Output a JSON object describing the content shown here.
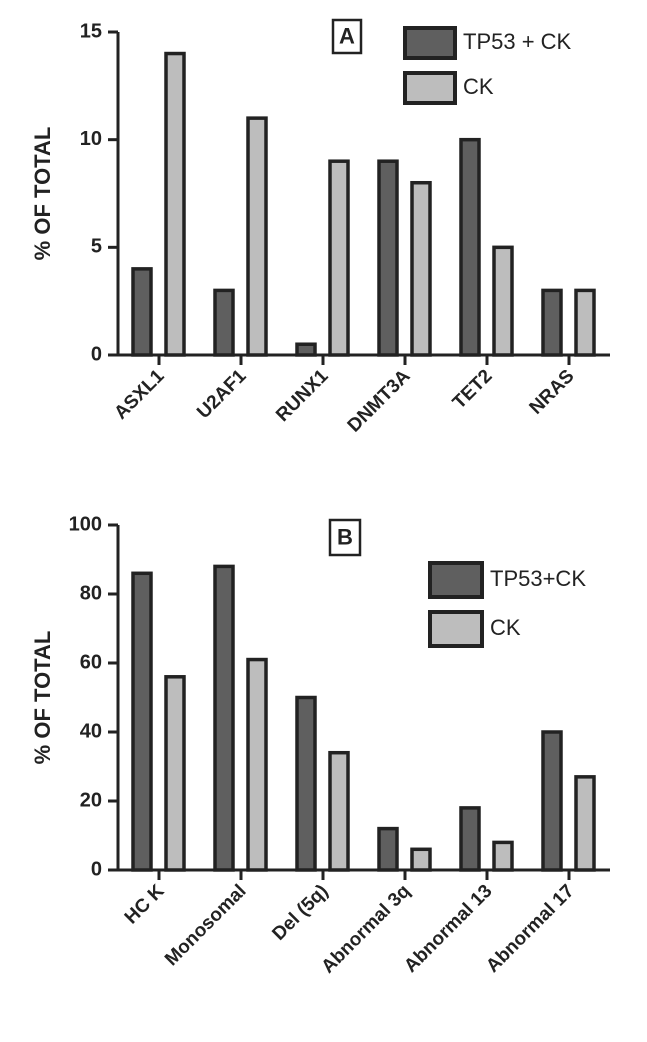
{
  "chart_data": [
    {
      "type": "bar",
      "panel_label": "A",
      "y_label": "% OF TOTAL",
      "categories": [
        "ASXL1",
        "U2AF1",
        "RUNX1",
        "DNMT3A",
        "TET2",
        "NRAS"
      ],
      "series": [
        {
          "name": "TP53 + CK",
          "color": "#5f5f5f",
          "values": [
            4,
            3,
            0.5,
            9,
            10,
            3
          ]
        },
        {
          "name": "CK",
          "color": "#bdbdbd",
          "values": [
            14,
            11,
            9,
            8,
            5,
            3
          ]
        }
      ],
      "ylim": [
        0,
        15
      ],
      "yticks": [
        0,
        5,
        10,
        15
      ],
      "legend": "top-right"
    },
    {
      "type": "bar",
      "panel_label": "B",
      "y_label": "% OF TOTAL",
      "categories": [
        "HC K",
        "Monosomal",
        "Del (5q)",
        "Abnormal 3q",
        "Abnormal 13",
        "Abnormal 17"
      ],
      "series": [
        {
          "name": "TP53+CK",
          "color": "#5f5f5f",
          "values": [
            86,
            88,
            50,
            12,
            18,
            40
          ]
        },
        {
          "name": "CK",
          "color": "#bdbdbd",
          "values": [
            56,
            61,
            34,
            6,
            8,
            27
          ]
        }
      ],
      "ylim": [
        0,
        100
      ],
      "yticks": [
        0,
        20,
        40,
        60,
        80,
        100
      ],
      "legend": "top-right"
    }
  ]
}
